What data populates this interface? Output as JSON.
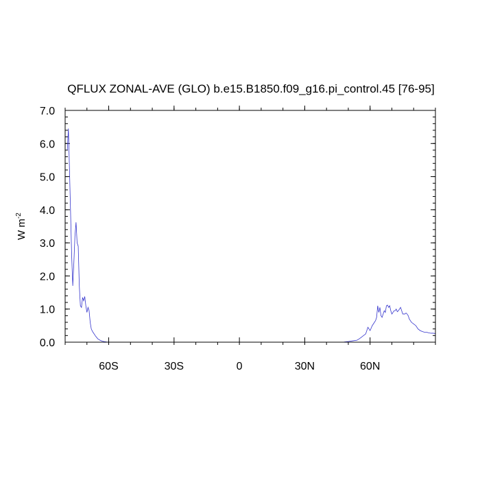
{
  "chart_data": {
    "type": "line",
    "title": "QFLUX ZONAL-AVE (GLO) b.e15.B1850.f09_g16.pi_control.45 [76-95]",
    "xlabel": "",
    "ylabel": "W m",
    "ylabel_superscript": "-2",
    "xlim": [
      -80,
      90
    ],
    "ylim": [
      0,
      7
    ],
    "x_ticks": [
      {
        "value": -60,
        "label": "60S"
      },
      {
        "value": -30,
        "label": "30S"
      },
      {
        "value": 0,
        "label": "0"
      },
      {
        "value": 30,
        "label": "30N"
      },
      {
        "value": 60,
        "label": "60N"
      }
    ],
    "y_ticks": [
      {
        "value": 0,
        "label": "0.0"
      },
      {
        "value": 1,
        "label": "1.0"
      },
      {
        "value": 2,
        "label": "2.0"
      },
      {
        "value": 3,
        "label": "3.0"
      },
      {
        "value": 4,
        "label": "4.0"
      },
      {
        "value": 5,
        "label": "5.0"
      },
      {
        "value": 6,
        "label": "6.0"
      },
      {
        "value": 7,
        "label": "7.0"
      }
    ],
    "grid": false,
    "line_color": "#3333cc",
    "series": [
      {
        "x": [
          -79.0,
          -78.5,
          -78.0,
          -77.5,
          -77.0,
          -76.5,
          -76.0,
          -75.5,
          -75.0,
          -74.5,
          -74.0,
          -73.5,
          -73.0,
          -72.5,
          -72.0,
          -71.5,
          -71.0,
          -70.5,
          -70.0,
          -69.5,
          -69.0,
          -68.5,
          -68.0,
          -67.5,
          -67.0,
          -66.0,
          -65.0,
          -64.0,
          -63.0,
          -62.0,
          -61.0,
          -60.0,
          -58.0,
          -55.0,
          -50.0,
          -40.0,
          -30.0,
          -20.0,
          -10.0,
          0.0,
          10.0,
          20.0,
          30.0,
          40.0,
          45.0,
          48.0,
          50.0,
          52.0,
          54.0,
          55.0,
          56.0,
          57.0,
          58.0,
          59.0,
          60.0,
          61.0,
          62.0,
          62.5,
          63.0,
          63.5,
          64.0,
          64.5,
          65.0,
          65.5,
          66.0,
          66.5,
          67.0,
          67.5,
          68.0,
          68.5,
          69.0,
          69.5,
          70.0,
          70.5,
          71.0,
          71.5,
          72.0,
          72.5,
          73.0,
          74.0,
          75.0,
          76.0,
          76.5,
          77.0,
          77.5,
          78.0,
          79.0,
          80.0,
          81.0,
          82.0,
          83.0,
          84.0,
          85.0,
          86.0,
          87.0,
          88.0,
          89.0,
          90.0
        ],
        "y": [
          5.8,
          6.45,
          5.2,
          3.9,
          2.6,
          1.7,
          2.4,
          3.2,
          3.62,
          3.0,
          2.9,
          1.7,
          1.1,
          1.05,
          1.35,
          1.25,
          1.38,
          1.1,
          0.9,
          1.05,
          0.95,
          0.6,
          0.4,
          0.33,
          0.28,
          0.18,
          0.1,
          0.06,
          0.03,
          0.015,
          0.008,
          0.005,
          0.003,
          0.002,
          0.001,
          0.0,
          0.0,
          0.0,
          0.0,
          0.0,
          0.0,
          0.0,
          0.0,
          0.0,
          0.0,
          0.005,
          0.02,
          0.04,
          0.06,
          0.1,
          0.15,
          0.2,
          0.25,
          0.45,
          0.35,
          0.5,
          0.6,
          0.65,
          0.75,
          1.1,
          0.9,
          1.05,
          0.8,
          0.75,
          0.85,
          0.95,
          0.9,
          1.1,
          1.12,
          1.05,
          1.1,
          0.95,
          0.85,
          0.9,
          0.95,
          0.95,
          1.0,
          0.92,
          0.95,
          1.05,
          0.85,
          0.85,
          0.88,
          0.85,
          0.8,
          0.7,
          0.6,
          0.55,
          0.5,
          0.4,
          0.35,
          0.32,
          0.3,
          0.3,
          0.28,
          0.27,
          0.27,
          0.26
        ]
      }
    ]
  }
}
